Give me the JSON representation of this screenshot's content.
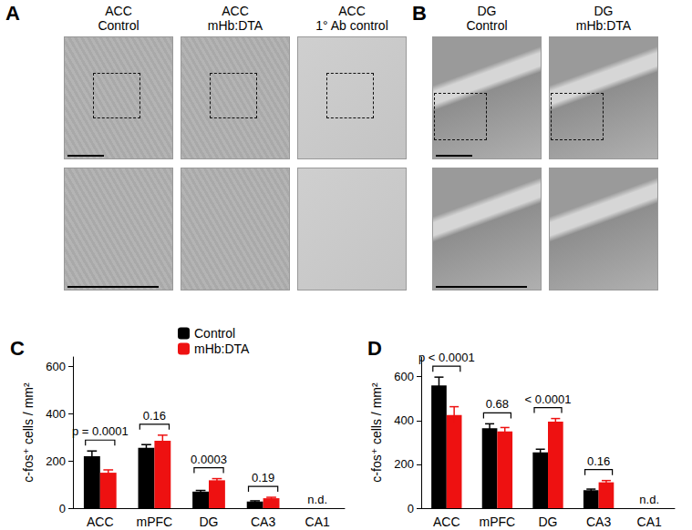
{
  "panels": [
    {
      "label": "A",
      "images": [
        {
          "title": [
            "ACC",
            "Control"
          ]
        },
        {
          "title": [
            "ACC",
            "mHb:DTA"
          ]
        },
        {
          "title": [
            "ACC",
            "1° Ab control"
          ]
        }
      ]
    },
    {
      "label": "B",
      "images": [
        {
          "title": [
            "DG",
            "Control"
          ]
        },
        {
          "title": [
            "DG",
            "mHb:DTA"
          ]
        }
      ]
    }
  ],
  "chart_data": [
    {
      "type": "bar",
      "title": "C",
      "ylabel": "c-fos⁺ cells / mm²",
      "categories": [
        "ACC",
        "mPFC",
        "DG",
        "CA3",
        "CA1"
      ],
      "series": [
        {
          "name": "Control",
          "color": "#000000",
          "values": [
            220,
            255,
            70,
            28,
            null
          ],
          "errors": [
            22,
            14,
            5,
            3,
            null
          ]
        },
        {
          "name": "mHb:DTA",
          "color": "#ee1111",
          "values": [
            150,
            285,
            118,
            42,
            null
          ],
          "errors": [
            12,
            24,
            7,
            4,
            null
          ]
        }
      ],
      "annotations": [
        "p = 0.0001",
        "0.16",
        "0.0003",
        "0.19",
        "n.d."
      ],
      "ylim": [
        0,
        640
      ],
      "yticks": [
        0,
        200,
        400,
        600
      ],
      "grid": false,
      "legend": "top"
    },
    {
      "type": "bar",
      "title": "D",
      "ylabel": "c-fos⁺ cells / mm²",
      "categories": [
        "ACC",
        "mPFC",
        "DG",
        "CA3",
        "CA1"
      ],
      "series": [
        {
          "name": "Control",
          "color": "#000000",
          "values": [
            560,
            365,
            255,
            82,
            null
          ],
          "errors": [
            38,
            20,
            14,
            5,
            null
          ]
        },
        {
          "name": "mHb:DTA",
          "color": "#ee1111",
          "values": [
            425,
            350,
            395,
            118,
            null
          ],
          "errors": [
            38,
            18,
            14,
            8,
            null
          ]
        }
      ],
      "annotations": [
        "p < 0.0001",
        "0.68",
        "< 0.0001",
        "0.16",
        "n.d."
      ],
      "ylim": [
        0,
        690
      ],
      "yticks": [
        0,
        200,
        400,
        600
      ],
      "grid": false
    }
  ]
}
